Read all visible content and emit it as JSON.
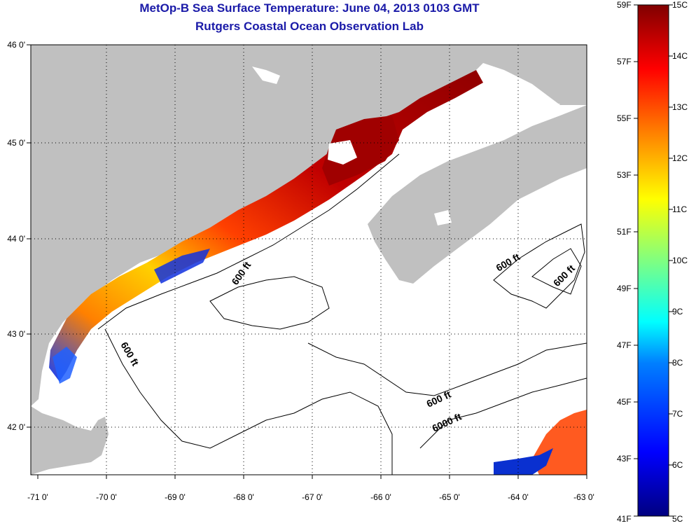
{
  "header": {
    "title": "MetOp-B Sea Surface Temperature:  June 04, 2013 0103 GMT",
    "subtitle": "Rutgers Coastal Ocean Observation Lab"
  },
  "map": {
    "lon_labels": [
      "-71 0'",
      "-70 0'",
      "-69 0'",
      "-68 0'",
      "-67 0'",
      "-66 0'",
      "-65 0'",
      "-64 0'",
      "-63 0'"
    ],
    "lat_labels": [
      "46 0'",
      "45 0'",
      "44 0'",
      "43 0'",
      "42 0'"
    ],
    "contour_labels": [
      "600 ft",
      "600 ft",
      "600 ft",
      "600 ft",
      "600 ft",
      "6000 ft"
    ],
    "colors": {
      "land": "#c0c0c0",
      "ocean": "#ffffff",
      "cloud": "#ffffff"
    }
  },
  "colorbar": {
    "fahrenheit_labels": [
      "59F",
      "57F",
      "55F",
      "53F",
      "51F",
      "49F",
      "47F",
      "45F",
      "43F",
      "41F"
    ],
    "celsius_labels": [
      "15C",
      "14C",
      "13C",
      "12C",
      "11C",
      "10C",
      "9C",
      "8C",
      "7C",
      "6C",
      "5C"
    ],
    "colors": [
      "#000080",
      "#0000ff",
      "#0080ff",
      "#00ffff",
      "#80ff80",
      "#ffff00",
      "#ff8000",
      "#ff0000",
      "#800000"
    ]
  }
}
